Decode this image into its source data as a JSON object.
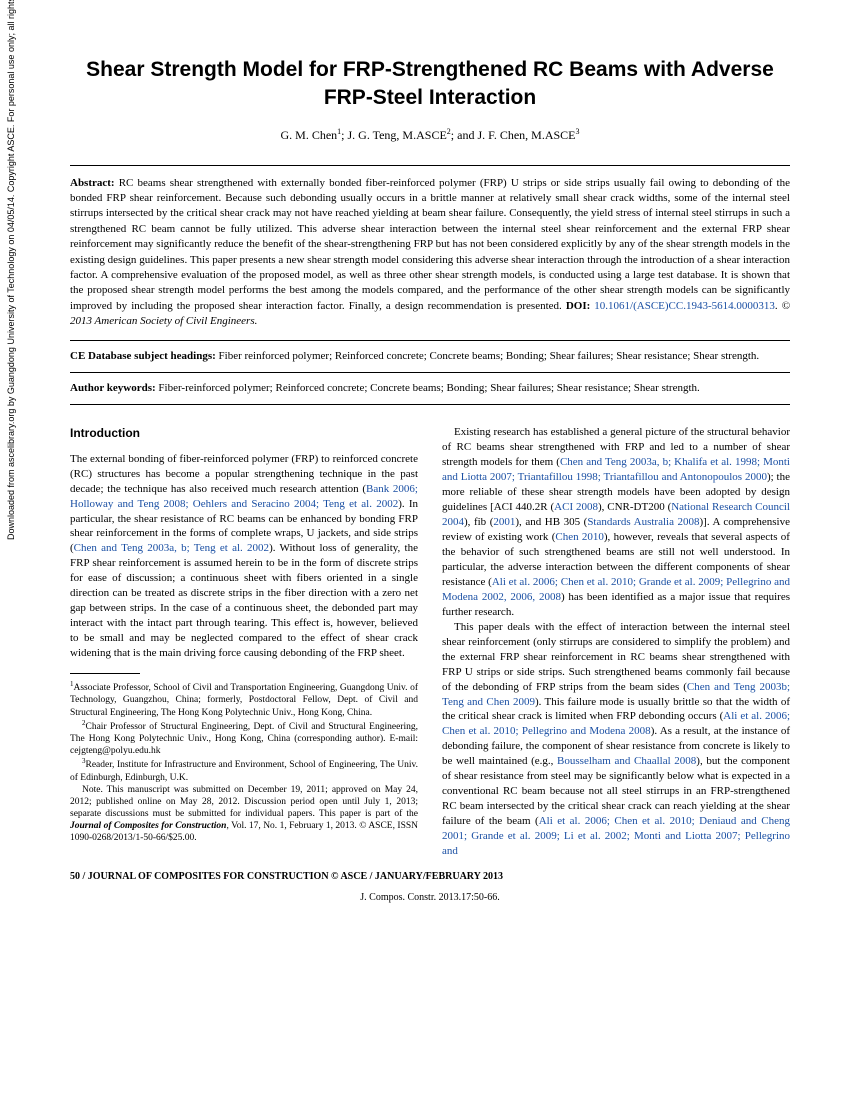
{
  "vertical_note": "Downloaded from ascelibrary.org by Guangdong University of Technology on 04/05/14. Copyright ASCE. For personal use only; all rights reserved.",
  "title": "Shear Strength Model for FRP-Strengthened RC Beams with Adverse FRP-Steel Interaction",
  "authors_html": "G. M. Chen<sup>1</sup>; J. G. Teng, M.ASCE<sup>2</sup>; and J. F. Chen, M.ASCE<sup>3</sup>",
  "abstract_label": "Abstract:",
  "abstract_text": "RC beams shear strengthened with externally bonded fiber-reinforced polymer (FRP) U strips or side strips usually fail owing to debonding of the bonded FRP shear reinforcement. Because such debonding usually occurs in a brittle manner at relatively small shear crack widths, some of the internal steel stirrups intersected by the critical shear crack may not have reached yielding at beam shear failure. Consequently, the yield stress of internal steel stirrups in such a strengthened RC beam cannot be fully utilized. This adverse shear interaction between the internal steel shear reinforcement and the external FRP shear reinforcement may significantly reduce the benefit of the shear-strengthening FRP but has not been considered explicitly by any of the shear strength models in the existing design guidelines. This paper presents a new shear strength model considering this adverse shear interaction through the introduction of a shear interaction factor. A comprehensive evaluation of the proposed model, as well as three other shear strength models, is conducted using a large test database. It is shown that the proposed shear strength model performs the best among the models compared, and the performance of the other shear strength models can be significantly improved by including the proposed shear interaction factor. Finally, a design recommendation is presented.",
  "doi_label": "DOI:",
  "doi_link": "10.1061/(ASCE)CC.1943-5614.0000313",
  "copyright": "© 2013 American Society of Civil Engineers.",
  "subject_label": "CE Database subject headings:",
  "subject_text": "Fiber reinforced polymer; Reinforced concrete; Concrete beams; Bonding; Shear failures; Shear resistance; Shear strength.",
  "keywords_label": "Author keywords:",
  "keywords_text": "Fiber-reinforced polymer; Reinforced concrete; Concrete beams; Bonding; Shear failures; Shear resistance; Shear strength.",
  "introduction_heading": "Introduction",
  "col1_p1a": "The external bonding of fiber-reinforced polymer (FRP) to reinforced concrete (RC) structures has become a popular strengthening technique in the past decade; the technique has also received much research attention (",
  "col1_p1_refs1": "Bank 2006; Holloway and Teng 2008; Oehlers and Seracino 2004; Teng et al. 2002",
  "col1_p1b": "). In particular, the shear resistance of RC beams can be enhanced by bonding FRP shear reinforcement in the forms of complete wraps, U jackets, and side strips (",
  "col1_p1_refs2": "Chen and Teng 2003a, b; Teng et al. 2002",
  "col1_p1c": "). Without loss of generality, the FRP shear reinforcement is assumed herein to be in the form of discrete strips for ease of discussion; a continuous sheet with fibers oriented in a single direction can be treated as discrete strips in the fiber direction with a zero net gap between strips. In the case of a continuous sheet, the debonded part may interact with the intact part through tearing. This effect is, however, believed to be small and may be neglected compared to the effect of shear crack widening that is the main driving force causing debonding of the FRP sheet.",
  "affil1": "Associate Professor, School of Civil and Transportation Engineering, Guangdong Univ. of Technology, Guangzhou, China; formerly, Postdoctoral Fellow, Dept. of Civil and Structural Engineering, The Hong Kong Polytechnic Univ., Hong Kong, China.",
  "affil2": "Chair Professor of Structural Engineering, Dept. of Civil and Structural Engineering, The Hong Kong Polytechnic Univ., Hong Kong, China (corresponding author). E-mail: cejgteng@polyu.edu.hk",
  "affil3": "Reader, Institute for Infrastructure and Environment, School of Engineering, The Univ. of Edinburgh, Edinburgh, U.K.",
  "note_text": "Note. This manuscript was submitted on December 19, 2011; approved on May 24, 2012; published online on May 28, 2012. Discussion period open until July 1, 2013; separate discussions must be submitted for individual papers. This paper is part of the ",
  "note_italic": "Journal of Composites for Construction",
  "note_tail": ", Vol. 17, No. 1, February 1, 2013. © ASCE, ISSN 1090-0268/2013/1-50-66/$25.00.",
  "col2_p1a": "Existing research has established a general picture of the structural behavior of RC beams shear strengthened with FRP and led to a number of shear strength models for them (",
  "col2_p1_refs1": "Chen and Teng 2003a, b; Khalifa et al. 1998; Monti and Liotta 2007; Triantafillou 1998; Triantafillou and Antonopoulos 2000",
  "col2_p1b": "); the more reliable of these shear strength models have been adopted by design guidelines [ACI 440.2R (",
  "col2_p1_refs2": "ACI 2008",
  "col2_p1c": "), CNR-DT200 (",
  "col2_p1_refs3": "National Research Council 2004",
  "col2_p1d": "), fib (",
  "col2_p1_refs4": "2001",
  "col2_p1e": "), and HB 305 (",
  "col2_p1_refs5": "Standards Australia 2008",
  "col2_p1f": ")]. A comprehensive review of existing work (",
  "col2_p1_refs6": "Chen 2010",
  "col2_p1g": "), however, reveals that several aspects of the behavior of such strengthened beams are still not well understood. In particular, the adverse interaction between the different components of shear resistance (",
  "col2_p1_refs7": "Ali et al. 2006; Chen et al. 2010; Grande et al. 2009; Pellegrino and Modena 2002, 2006, 2008",
  "col2_p1h": ") has been identified as a major issue that requires further research.",
  "col2_p2a": "This paper deals with the effect of interaction between the internal steel shear reinforcement (only stirrups are considered to simplify the problem) and the external FRP shear reinforcement in RC beams shear strengthened with FRP U strips or side strips. Such strengthened beams commonly fail because of the debonding of FRP strips from the beam sides (",
  "col2_p2_refs1": "Chen and Teng 2003b; Teng and Chen 2009",
  "col2_p2b": "). This failure mode is usually brittle so that the width of the critical shear crack is limited when FRP debonding occurs (",
  "col2_p2_refs2": "Ali et al. 2006; Chen et al. 2010; Pellegrino and Modena 2008",
  "col2_p2c": "). As a result, at the instance of debonding failure, the component of shear resistance from concrete is likely to be well maintained (e.g., ",
  "col2_p2_refs3": "Bousselham and Chaallal 2008",
  "col2_p2d": "), but the component of shear resistance from steel may be significantly below what is expected in a conventional RC beam because not all steel stirrups in an FRP-strengthened RC beam intersected by the critical shear crack can reach yielding at the shear failure of the beam (",
  "col2_p2_refs4": "Ali et al. 2006; Chen et al. 2010; Deniaud and Cheng 2001; Grande et al. 2009; Li et al. 2002; Monti and Liotta 2007; Pellegrino and",
  "footer_left": "50 / JOURNAL OF COMPOSITES FOR CONSTRUCTION © ASCE / JANUARY/FEBRUARY 2013",
  "bottom_cite": "J. Compos. Constr. 2013.17:50-66."
}
